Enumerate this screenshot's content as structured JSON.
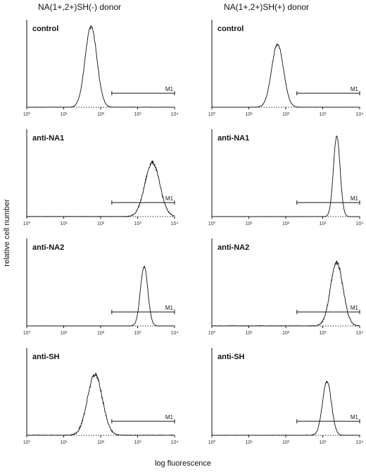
{
  "column_titles": [
    "NA(1+,2+)SH(-) donor",
    "NA(1+,2+)SH(+) donor"
  ],
  "ylabel": "relative cell number",
  "xlabel": "log fluorescence",
  "x_tick_labels": [
    "10⁰",
    "10¹",
    "10²",
    "10³",
    "10⁴"
  ],
  "chart_data": [
    {
      "type": "area",
      "title": "control",
      "donor": "NA(1+,2+)SH(-) donor",
      "x_scale": "log",
      "xlim": [
        1,
        10000
      ],
      "gate": {
        "label": "M1",
        "range": [
          200,
          10000
        ]
      },
      "peak_x": 55,
      "peak_rel_height": 0.92,
      "spread_decades": 0.16,
      "noise": 0.04
    },
    {
      "type": "area",
      "title": "control",
      "donor": "NA(1+,2+)SH(+) donor",
      "x_scale": "log",
      "xlim": [
        1,
        10000
      ],
      "gate": {
        "label": "M1",
        "range": [
          200,
          10000
        ]
      },
      "peak_x": 60,
      "peak_rel_height": 0.72,
      "spread_decades": 0.16,
      "noise": 0.03
    },
    {
      "type": "area",
      "title": "anti-NA1",
      "donor": "NA(1+,2+)SH(-) donor",
      "x_scale": "log",
      "xlim": [
        1,
        10000
      ],
      "gate": {
        "label": "M1",
        "range": [
          200,
          10000
        ]
      },
      "peak_x": 2500,
      "peak_rel_height": 0.62,
      "spread_decades": 0.2,
      "noise": 0.05
    },
    {
      "type": "area",
      "title": "anti-NA1",
      "donor": "NA(1+,2+)SH(+) donor",
      "x_scale": "log",
      "xlim": [
        1,
        10000
      ],
      "gate": {
        "label": "M1",
        "range": [
          200,
          10000
        ]
      },
      "peak_x": 2400,
      "peak_rel_height": 0.92,
      "spread_decades": 0.09,
      "noise": 0.02
    },
    {
      "type": "area",
      "title": "anti-NA2",
      "donor": "NA(1+,2+)SH(-) donor",
      "x_scale": "log",
      "xlim": [
        1,
        10000
      ],
      "gate": {
        "label": "M1",
        "range": [
          200,
          10000
        ]
      },
      "peak_x": 1500,
      "peak_rel_height": 0.68,
      "spread_decades": 0.1,
      "noise": 0.03
    },
    {
      "type": "area",
      "title": "anti-NA2",
      "donor": "NA(1+,2+)SH(+) donor",
      "x_scale": "log",
      "xlim": [
        1,
        10000
      ],
      "gate": {
        "label": "M1",
        "range": [
          200,
          10000
        ]
      },
      "peak_x": 2400,
      "peak_rel_height": 0.72,
      "spread_decades": 0.17,
      "noise": 0.06
    },
    {
      "type": "area",
      "title": "anti-SH",
      "donor": "NA(1+,2+)SH(-) donor",
      "x_scale": "log",
      "xlim": [
        1,
        10000
      ],
      "gate": {
        "label": "M1",
        "range": [
          200,
          10000
        ]
      },
      "peak_x": 70,
      "peak_rel_height": 0.7,
      "spread_decades": 0.2,
      "noise": 0.06
    },
    {
      "type": "area",
      "title": "anti-SH",
      "donor": "NA(1+,2+)SH(+) donor",
      "x_scale": "log",
      "xlim": [
        1,
        10000
      ],
      "gate": {
        "label": "M1",
        "range": [
          200,
          10000
        ]
      },
      "peak_x": 1300,
      "peak_rel_height": 0.62,
      "spread_decades": 0.12,
      "noise": 0.04
    }
  ]
}
